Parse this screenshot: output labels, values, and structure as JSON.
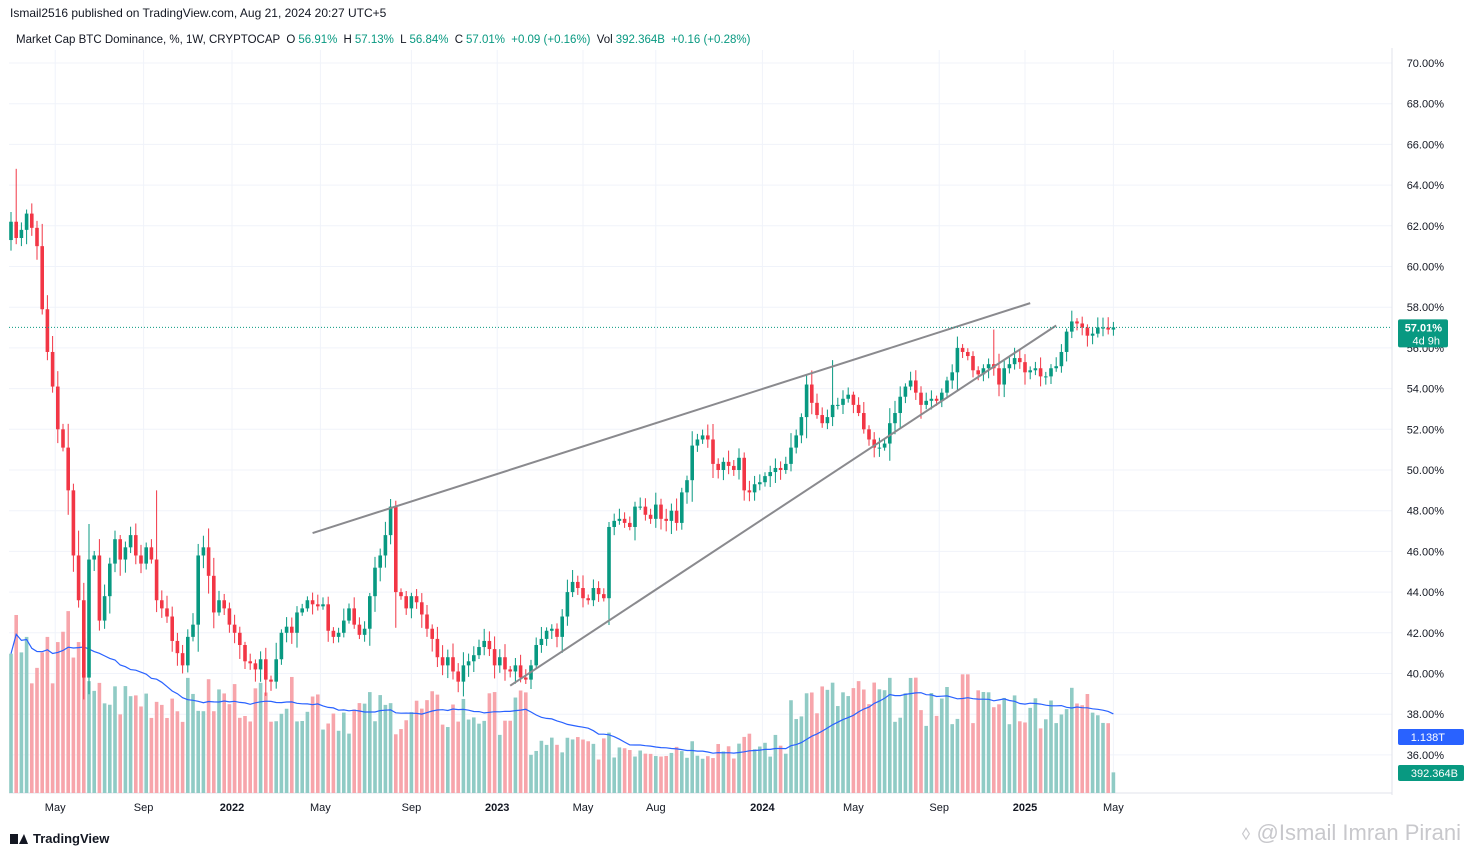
{
  "header": {
    "publisher": "Ismail2516 published on TradingView.com, Aug 21, 2024 20:27 UTC+5"
  },
  "legend": {
    "symbol": "Market Cap BTC Dominance, %, 1W, CRYPTOCAP",
    "open_label": "O",
    "open": "56.91%",
    "high_label": "H",
    "high": "57.13%",
    "low_label": "L",
    "low": "56.84%",
    "close_label": "C",
    "close": "57.01%",
    "change": "+0.09 (+0.16%)",
    "vol_label": "Vol",
    "vol": "392.364B",
    "vol_change": "+0.16 (+0.28%)"
  },
  "footer": {
    "brand": "TradingView",
    "watermark": "@Ismail Imran Pirani"
  },
  "colors": {
    "up": "#089981",
    "down": "#f23645",
    "vol_up": "#90cbc5",
    "vol_down": "#f7a5ab",
    "ma": "#2962ff",
    "trendline": "#8a8a8e",
    "price_badge": "#089981",
    "ma_badge": "#2962ff"
  },
  "chart_data": {
    "type": "candlestick",
    "title": "Market Cap BTC Dominance, %, 1W, CRYPTOCAP",
    "y_unit": "%",
    "ylim": [
      34.9,
      71.2
    ],
    "y_ticks": [
      "70.00%",
      "68.00%",
      "66.00%",
      "64.00%",
      "62.00%",
      "60.00%",
      "58.00%",
      "56.00%",
      "54.00%",
      "52.00%",
      "50.00%",
      "48.00%",
      "46.00%",
      "44.00%",
      "42.00%",
      "40.00%",
      "38.00%",
      "36.00%"
    ],
    "x_ticks": [
      {
        "label": "May",
        "bar": 8.5,
        "bold": false
      },
      {
        "label": "Sep",
        "bar": 25.5,
        "bold": false
      },
      {
        "label": "2022",
        "bar": 42.5,
        "bold": true
      },
      {
        "label": "May",
        "bar": 59.5,
        "bold": false
      },
      {
        "label": "Sep",
        "bar": 77,
        "bold": false
      },
      {
        "label": "2023",
        "bar": 93.5,
        "bold": true
      },
      {
        "label": "May",
        "bar": 110,
        "bold": false
      },
      {
        "label": "Aug",
        "bar": 124,
        "bold": false
      },
      {
        "label": "2024",
        "bar": 144.5,
        "bold": true
      },
      {
        "label": "May",
        "bar": 162,
        "bold": false
      },
      {
        "label": "Sep",
        "bar": 178.5,
        "bold": false
      },
      {
        "label": "2025",
        "bar": 195,
        "bold": true
      },
      {
        "label": "May",
        "bar": 212,
        "bold": false
      }
    ],
    "closes": [
      62.2,
      61.4,
      61.8,
      62.6,
      61.9,
      61.0,
      57.9,
      55.8,
      54.1,
      52.0,
      51.1,
      49.0,
      45.8,
      43.6,
      39.8,
      45.6,
      45.8,
      42.6,
      43.8,
      45.4,
      46.6,
      45.6,
      46.2,
      46.8,
      45.8,
      45.4,
      46.2,
      45.6,
      43.6,
      43.2,
      42.8,
      41.6,
      41.0,
      40.4,
      41.8,
      42.4,
      45.8,
      46.2,
      44.8,
      43.0,
      43.6,
      43.2,
      42.4,
      42.0,
      41.4,
      40.6,
      40.5,
      40.2,
      40.7,
      39.7,
      39.6,
      40.7,
      42.0,
      42.3,
      42.0,
      43.0,
      43.2,
      43.6,
      43.4,
      43.3,
      43.4,
      42.1,
      41.8,
      42.0,
      42.6,
      43.2,
      42.4,
      41.9,
      42.2,
      43.8,
      45.2,
      45.8,
      46.8,
      48.2,
      44.0,
      43.8,
      43.2,
      43.8,
      43.5,
      42.9,
      42.2,
      41.7,
      40.8,
      40.4,
      40.8,
      40.1,
      39.6,
      40.4,
      40.6,
      40.9,
      41.3,
      41.6,
      41.2,
      40.4,
      40.8,
      40.2,
      40.1,
      40.4,
      39.8,
      39.7,
      40.4,
      41.4,
      41.7,
      42.1,
      42.2,
      41.8,
      42.8,
      44.0,
      44.5,
      44.2,
      43.7,
      43.6,
      44.2,
      43.9,
      43.7,
      47.2,
      47.5,
      47.6,
      47.4,
      47.2,
      48.2,
      48.2,
      47.8,
      47.6,
      48.3,
      47.6,
      47.5,
      48.0,
      47.4,
      48.9,
      49.5,
      51.2,
      51.5,
      51.7,
      51.5,
      50.3,
      50.0,
      50.4,
      50.2,
      50.0,
      50.6,
      49.0,
      48.9,
      49.3,
      49.4,
      49.7,
      49.9,
      50.1,
      50.0,
      50.3,
      51.1,
      51.7,
      52.6,
      54.2,
      53.3,
      52.7,
      52.3,
      52.6,
      53.2,
      53.2,
      53.5,
      53.7,
      53.2,
      52.8,
      52.0,
      51.5,
      51.1,
      51.1,
      51.3,
      52.3,
      52.8,
      53.6,
      54.1,
      54.4,
      53.8,
      53.2,
      53.4,
      53.5,
      53.4,
      53.8,
      54.4,
      54.8,
      56.0,
      55.8,
      55.6,
      54.9,
      54.7,
      55.0,
      55.2,
      55.0,
      54.2,
      55.0,
      55.2,
      55.5,
      55.3,
      54.8,
      54.9,
      55.0,
      54.6,
      54.6,
      55.0,
      55.1,
      55.8,
      56.8,
      57.3,
      57.2,
      57.0,
      56.6,
      56.7,
      57.0,
      57.0,
      56.9,
      57.01
    ],
    "opens_first": 61.3,
    "volume_unit": "T",
    "volume_axis_label": "1.138T",
    "volume_last_label": "392.364B",
    "volume_max": 1.38,
    "price_badge": {
      "value": "57.01%",
      "countdown": "4d 9h"
    },
    "trendlines": [
      {
        "name": "upper-resistance",
        "from": {
          "bar": 58,
          "value": 46.9
        },
        "to": {
          "bar": 196,
          "value": 58.2
        }
      },
      {
        "name": "lower-support",
        "from": {
          "bar": 96,
          "value": 39.4
        },
        "to": {
          "bar": 201,
          "value": 57.1
        }
      }
    ]
  }
}
